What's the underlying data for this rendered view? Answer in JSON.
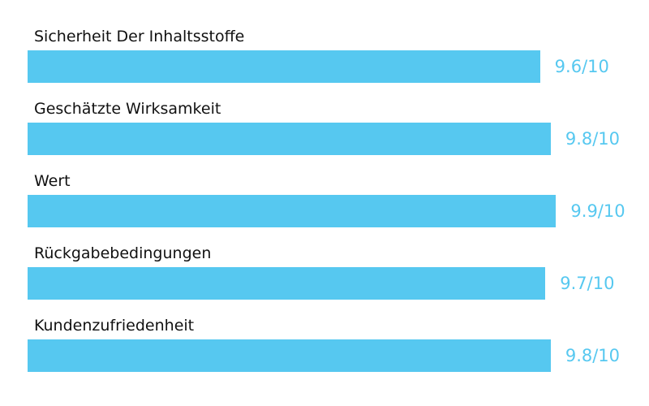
{
  "colors": {
    "bar": "#56C8F0",
    "value_text": "#56C8F0",
    "label_text": "#111111"
  },
  "chart_data": {
    "type": "bar",
    "orientation": "horizontal",
    "categories": [
      "Sicherheit Der Inhaltsstoffe",
      "Geschätzte Wirksamkeit",
      "Wert",
      "Rückgabebedingungen",
      "Kundenzufriedenheit"
    ],
    "values": [
      9.6,
      9.8,
      9.9,
      9.7,
      9.8
    ],
    "value_labels": [
      "9.6/10",
      "9.8/10",
      "9.9/10",
      "9.7/10",
      "9.8/10"
    ],
    "xlim": [
      0,
      10
    ],
    "grid": false,
    "legend": "none"
  }
}
